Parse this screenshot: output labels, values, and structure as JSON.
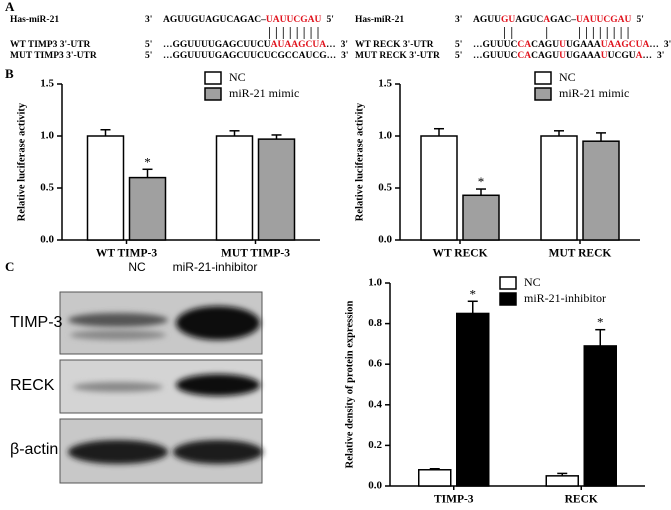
{
  "panel_labels": [
    "A",
    "B",
    "C"
  ],
  "sequences": [
    [
      {
        "name": "Has-miR-21",
        "start": "3'",
        "segments": [
          {
            "text": "AGUUGUAGUCAGAC–",
            "color": "#000000"
          },
          {
            "text": "UAUUCGAU",
            "color": "#e0141e"
          }
        ],
        "end": "5'"
      },
      {
        "name": "WT TIMP3 3'-UTR",
        "start": "5'",
        "segments": [
          {
            "text": "…GGUUUUGAGCUUCU",
            "color": "#000000"
          },
          {
            "text": "AUAAGCUA",
            "color": "#e0141e"
          },
          {
            "text": "…",
            "color": "#000000"
          }
        ],
        "end": "3'"
      },
      {
        "name": "MUT TIMP3 3'-UTR",
        "start": "5'",
        "segments": [
          {
            "text": "…GGUUUUGAGCUUCUCGCCAUCG…",
            "color": "#000000"
          }
        ],
        "end": "3'"
      }
    ],
    [
      {
        "name": "Has-miR-21",
        "start": "3'",
        "segments": [
          {
            "text": "AGUU",
            "color": "#000000"
          },
          {
            "text": "GU",
            "color": "#e0141e"
          },
          {
            "text": "AGUC",
            "color": "#000000"
          },
          {
            "text": "A",
            "color": "#e0141e"
          },
          {
            "text": "GAC–",
            "color": "#000000"
          },
          {
            "text": "UAUUCGAU",
            "color": "#e0141e"
          }
        ],
        "end": "5'"
      },
      {
        "name": "WT RECK 3'-UTR",
        "start": "5'",
        "segments": [
          {
            "text": "…GUUUC",
            "color": "#000000"
          },
          {
            "text": "CA",
            "color": "#e0141e"
          },
          {
            "text": "CAGU",
            "color": "#000000"
          },
          {
            "text": "U",
            "color": "#e0141e"
          },
          {
            "text": "UGAAA",
            "color": "#000000"
          },
          {
            "text": "UAAGCUA",
            "color": "#e0141e"
          },
          {
            "text": "…",
            "color": "#000000"
          }
        ],
        "end": "3'"
      },
      {
        "name": "MUT RECK 3'-UTR",
        "start": "5'",
        "segments": [
          {
            "text": "…GUUUC",
            "color": "#000000"
          },
          {
            "text": "CA",
            "color": "#e0141e"
          },
          {
            "text": "CAGU",
            "color": "#000000"
          },
          {
            "text": "U",
            "color": "#e0141e"
          },
          {
            "text": "UGAAA",
            "color": "#000000"
          },
          {
            "text": "U",
            "color": "#e0141e"
          },
          {
            "text": "UCGU",
            "color": "#000000"
          },
          {
            "text": "A",
            "color": "#e0141e"
          },
          {
            "text": "…",
            "color": "#000000"
          }
        ],
        "end": "3'"
      }
    ]
  ],
  "blot": {
    "lanes": [
      "NC",
      "miR-21-inhibitor"
    ],
    "rows": [
      "TIMP-3",
      "RECK",
      "β-actin"
    ]
  },
  "chart_data": [
    {
      "type": "bar",
      "ylabel": "Relative luciferase activity",
      "categories": [
        "WT TIMP-3",
        "MUT TIMP-3"
      ],
      "series": [
        {
          "name": "NC",
          "color": "#ffffff",
          "values": [
            1.0,
            1.0
          ],
          "errors": [
            0.06,
            0.05
          ]
        },
        {
          "name": "miR-21 mimic",
          "color": "#a0a0a0",
          "values": [
            0.6,
            0.97
          ],
          "errors": [
            0.08,
            0.04
          ],
          "annotations": [
            "*",
            null
          ]
        }
      ],
      "ylim": [
        0,
        1.5
      ],
      "yticks": [
        {
          "value": 0,
          "label": "0.0"
        },
        0.5,
        {
          "value": 1,
          "label": "1.0"
        },
        1.5
      ],
      "legend": "top-right"
    },
    {
      "type": "bar",
      "ylabel": "Relative luciferase activity",
      "categories": [
        "WT RECK",
        "MUT RECK"
      ],
      "series": [
        {
          "name": "NC",
          "color": "#ffffff",
          "values": [
            1.0,
            1.0
          ],
          "errors": [
            0.07,
            0.05
          ]
        },
        {
          "name": "miR-21 mimic",
          "color": "#a0a0a0",
          "values": [
            0.43,
            0.95
          ],
          "errors": [
            0.06,
            0.08
          ],
          "annotations": [
            "*",
            null
          ]
        }
      ],
      "ylim": [
        0,
        1.5
      ],
      "yticks": [
        {
          "value": 0,
          "label": "0.0"
        },
        0.5,
        {
          "value": 1,
          "label": "1.0"
        },
        1.5
      ],
      "legend": "top-right"
    },
    {
      "type": "bar",
      "ylabel": "Relative density of protein expression",
      "categories": [
        "TIMP-3",
        "RECK"
      ],
      "series": [
        {
          "name": "NC",
          "color": "#ffffff",
          "values": [
            0.08,
            0.05
          ],
          "errors": [
            0.005,
            0.012
          ]
        },
        {
          "name": "miR-21-inhibitor",
          "color": "#000000",
          "values": [
            0.85,
            0.69
          ],
          "errors": [
            0.06,
            0.08
          ],
          "annotations": [
            "*",
            "*"
          ]
        }
      ],
      "ylim": [
        0,
        1.0
      ],
      "yticks": [
        {
          "value": 0,
          "label": "0.0"
        },
        0.2,
        0.4,
        0.6,
        0.8,
        {
          "value": 1,
          "label": "1.0"
        }
      ],
      "legend": "top-right"
    }
  ]
}
